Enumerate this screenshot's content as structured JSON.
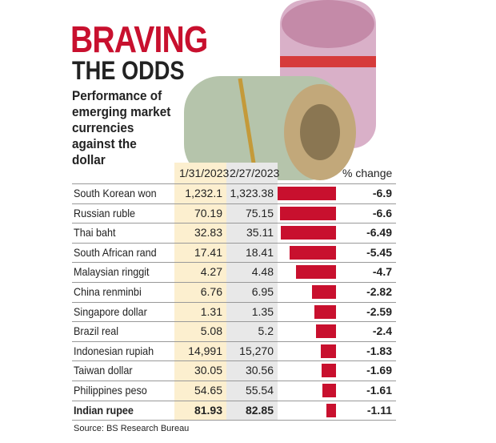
{
  "chart_data": {
    "type": "bar",
    "title": [
      "BRAVING",
      "THE ODDS"
    ],
    "subtitle": "Performance of emerging market currencies against the dollar",
    "start_label": "1/31/2023",
    "end_label": "2/27/2023",
    "change_label": "% change",
    "categories": [
      "South Korean won",
      "Russian ruble",
      "Thai baht",
      "South African rand",
      "Malaysian ringgit",
      "China renminbi",
      "Singapore dollar",
      "Brazil real",
      "Indonesian rupiah",
      "Taiwan dollar",
      "Philippines peso",
      "Indian rupee"
    ],
    "start_values": [
      "1,232.1",
      "70.19",
      "32.83",
      "17.41",
      "4.27",
      "6.76",
      "1.31",
      "5.08",
      "14,991",
      "30.05",
      "54.65",
      "81.93"
    ],
    "end_values": [
      "1,323.38",
      "75.15",
      "35.11",
      "18.41",
      "4.48",
      "6.95",
      "1.35",
      "5.2",
      "15,270",
      "30.56",
      "55.54",
      "82.85"
    ],
    "values": [
      -6.9,
      -6.6,
      -6.49,
      -5.45,
      -4.7,
      -2.82,
      -2.59,
      -2.4,
      -1.83,
      -1.69,
      -1.61,
      -1.11
    ],
    "color": "#c8102e",
    "source": "Source: BS Research Bureau"
  }
}
